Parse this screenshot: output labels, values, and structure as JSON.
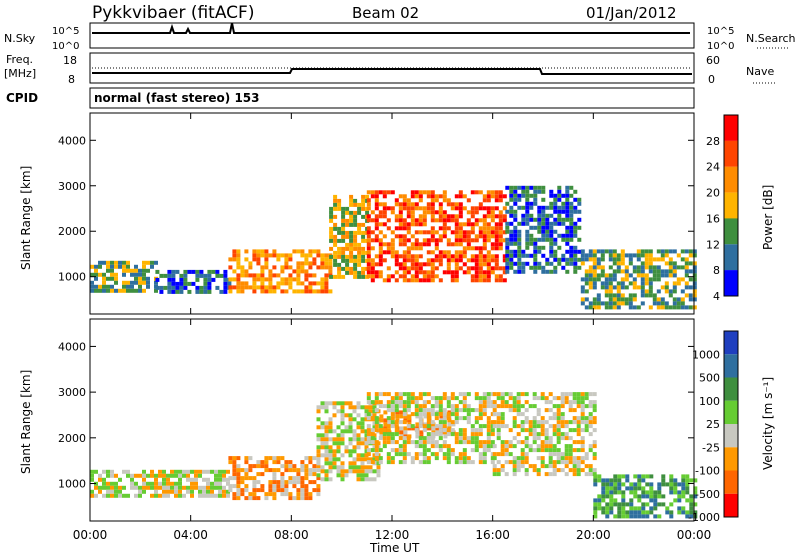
{
  "header": {
    "station": "Pykkvibaer (fitACF)",
    "beam": "Beam 02",
    "date": "01/Jan/2012"
  },
  "noise_panel": {
    "left_label": "N.Sky",
    "left_ticks": [
      "10^5",
      "10^0"
    ],
    "right_label": "N.Search",
    "right_ticks": [
      "10^5",
      "10^0"
    ]
  },
  "freq_panel": {
    "left_label_line1": "Freq.",
    "left_label_line2": "[MHz]",
    "left_ticks": [
      "18",
      "8"
    ],
    "right_label": "Nave",
    "right_ticks": [
      "60",
      "0"
    ]
  },
  "cpid": {
    "label": "CPID",
    "text": "normal (fast stereo) 153"
  },
  "chart_data": [
    {
      "type": "heatmap",
      "name": "power",
      "ylabel": "Slant Range [km]",
      "xlabel": "Time UT",
      "ylim": [
        180,
        4600
      ],
      "xlim": [
        0,
        24
      ],
      "y_ticks": [
        "4000",
        "3000",
        "2000",
        "1000"
      ],
      "x_ticks": [
        "00:00",
        "04:00",
        "08:00",
        "12:00",
        "16:00",
        "20:00",
        "00:00"
      ],
      "colorbar": {
        "label": "Power [dB]",
        "ticks": [
          "28",
          "24",
          "20",
          "16",
          "12",
          "8",
          "4"
        ],
        "colors": [
          "#ff0000",
          "#ff4500",
          "#ff8c00",
          "#ffb400",
          "#3f8f3f",
          "#2f6f9f",
          "#0000ff"
        ]
      },
      "regions": [
        {
          "t0": 0.0,
          "t1": 2.6,
          "r0": 700,
          "r1": 1350,
          "level": 16
        },
        {
          "t0": 2.6,
          "t1": 5.5,
          "r0": 650,
          "r1": 1150,
          "level": 10
        },
        {
          "t0": 5.5,
          "t1": 9.5,
          "r0": 700,
          "r1": 1600,
          "level": 24
        },
        {
          "t0": 9.5,
          "t1": 11.0,
          "r0": 1000,
          "r1": 2800,
          "level": 18
        },
        {
          "t0": 11.0,
          "t1": 16.5,
          "r0": 900,
          "r1": 2900,
          "level": 28
        },
        {
          "t0": 16.5,
          "t1": 19.5,
          "r0": 1100,
          "r1": 3000,
          "level": 10
        },
        {
          "t0": 19.5,
          "t1": 24.0,
          "r0": 300,
          "r1": 1600,
          "level": 14
        }
      ]
    },
    {
      "type": "heatmap",
      "name": "velocity",
      "ylabel": "Slant Range [km]",
      "xlabel": "Time UT",
      "ylim": [
        180,
        4600
      ],
      "xlim": [
        0,
        24
      ],
      "y_ticks": [
        "4000",
        "3000",
        "2000",
        "1000"
      ],
      "x_ticks": [
        "00:00",
        "04:00",
        "08:00",
        "12:00",
        "16:00",
        "20:00",
        "00:00"
      ],
      "colorbar": {
        "label": "Velocity [m s⁻¹]",
        "ticks": [
          "1000",
          "500",
          "100",
          "25",
          "-25",
          "-100",
          "-500",
          "-1000"
        ],
        "colors": [
          "#1f3fbf",
          "#2f6f9f",
          "#3f8f3f",
          "#66cc33",
          "#c8c8c0",
          "#ff9900",
          "#ff6600",
          "#ff0000"
        ]
      },
      "regions": [
        {
          "t0": 0.0,
          "t1": 5.5,
          "r0": 700,
          "r1": 1300,
          "level": 0
        },
        {
          "t0": 5.5,
          "t1": 9.0,
          "r0": 700,
          "r1": 1600,
          "level": -300
        },
        {
          "t0": 9.0,
          "t1": 11.5,
          "r0": 1100,
          "r1": 2800,
          "level": 0
        },
        {
          "t0": 11.5,
          "t1": 14.5,
          "r0": 2000,
          "r1": 2600,
          "level": -300
        },
        {
          "t0": 11.0,
          "t1": 16.0,
          "r0": 1500,
          "r1": 3000,
          "level": 0
        },
        {
          "t0": 16.0,
          "t1": 20.0,
          "r0": 1200,
          "r1": 3000,
          "level": 0
        },
        {
          "t0": 20.0,
          "t1": 24.0,
          "r0": 300,
          "r1": 1200,
          "level": 300
        }
      ]
    }
  ]
}
